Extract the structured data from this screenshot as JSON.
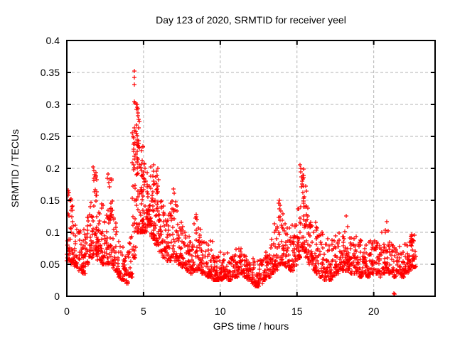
{
  "chart_data": {
    "type": "scatter",
    "title": "Day 123 of 2020, SRMTID for receiver yeel",
    "xlabel": "GPS time / hours",
    "ylabel": "SRMTID / TECUs",
    "xlim": [
      0,
      24
    ],
    "ylim": [
      0,
      0.4
    ],
    "xticks": [
      0,
      5,
      10,
      15,
      20
    ],
    "yticks": [
      0,
      0.05,
      0.1,
      0.15,
      0.2,
      0.25,
      0.3,
      0.35,
      0.4
    ],
    "grid": true,
    "legend": "none",
    "marker": "plus",
    "marker_color": "#ff0000",
    "grid_color": "#b3b3b3",
    "frame_color": "#000000",
    "background_color": "#ffffff",
    "seed": 123,
    "x_bin_width": 0.25,
    "envelope_bins_note": "each entry: [bin_start_hour, y_min, y_max, n_points] summarizing the dense scatter",
    "envelope_bins": [
      [
        0.0,
        0.055,
        0.165,
        26
      ],
      [
        0.25,
        0.05,
        0.145,
        26
      ],
      [
        0.5,
        0.045,
        0.12,
        24
      ],
      [
        0.75,
        0.04,
        0.105,
        22
      ],
      [
        1.0,
        0.035,
        0.11,
        24
      ],
      [
        1.25,
        0.05,
        0.135,
        24
      ],
      [
        1.5,
        0.06,
        0.175,
        26
      ],
      [
        1.75,
        0.065,
        0.195,
        26
      ],
      [
        2.0,
        0.055,
        0.155,
        26
      ],
      [
        2.25,
        0.05,
        0.145,
        26
      ],
      [
        2.5,
        0.05,
        0.165,
        24
      ],
      [
        2.75,
        0.05,
        0.185,
        24
      ],
      [
        3.0,
        0.04,
        0.125,
        24
      ],
      [
        3.25,
        0.03,
        0.1,
        22
      ],
      [
        3.5,
        0.025,
        0.085,
        22
      ],
      [
        3.75,
        0.02,
        0.08,
        22
      ],
      [
        4.0,
        0.03,
        0.1,
        24
      ],
      [
        4.25,
        0.06,
        0.265,
        28
      ],
      [
        4.5,
        0.1,
        0.295,
        30
      ],
      [
        4.75,
        0.1,
        0.235,
        30
      ],
      [
        5.0,
        0.1,
        0.22,
        30
      ],
      [
        5.25,
        0.11,
        0.21,
        28
      ],
      [
        5.5,
        0.09,
        0.215,
        28
      ],
      [
        5.75,
        0.08,
        0.2,
        28
      ],
      [
        6.0,
        0.07,
        0.16,
        26
      ],
      [
        6.25,
        0.06,
        0.145,
        24
      ],
      [
        6.5,
        0.055,
        0.13,
        24
      ],
      [
        6.75,
        0.06,
        0.165,
        24
      ],
      [
        7.0,
        0.055,
        0.15,
        24
      ],
      [
        7.25,
        0.05,
        0.12,
        24
      ],
      [
        7.5,
        0.045,
        0.11,
        24
      ],
      [
        7.75,
        0.04,
        0.1,
        24
      ],
      [
        8.0,
        0.035,
        0.1,
        24
      ],
      [
        8.25,
        0.04,
        0.125,
        24
      ],
      [
        8.5,
        0.04,
        0.11,
        24
      ],
      [
        8.75,
        0.035,
        0.09,
        22
      ],
      [
        9.0,
        0.03,
        0.085,
        22
      ],
      [
        9.25,
        0.03,
        0.09,
        22
      ],
      [
        9.5,
        0.025,
        0.07,
        22
      ],
      [
        9.75,
        0.025,
        0.065,
        22
      ],
      [
        10.0,
        0.025,
        0.07,
        22
      ],
      [
        10.25,
        0.03,
        0.075,
        22
      ],
      [
        10.5,
        0.025,
        0.065,
        22
      ],
      [
        10.75,
        0.03,
        0.07,
        22
      ],
      [
        11.0,
        0.03,
        0.08,
        22
      ],
      [
        11.25,
        0.035,
        0.08,
        22
      ],
      [
        11.5,
        0.03,
        0.07,
        22
      ],
      [
        11.75,
        0.025,
        0.065,
        22
      ],
      [
        12.0,
        0.02,
        0.06,
        22
      ],
      [
        12.25,
        0.015,
        0.055,
        22
      ],
      [
        12.5,
        0.02,
        0.06,
        22
      ],
      [
        12.75,
        0.025,
        0.07,
        22
      ],
      [
        13.0,
        0.03,
        0.08,
        22
      ],
      [
        13.25,
        0.035,
        0.1,
        24
      ],
      [
        13.5,
        0.04,
        0.12,
        24
      ],
      [
        13.75,
        0.05,
        0.148,
        24
      ],
      [
        14.0,
        0.05,
        0.13,
        24
      ],
      [
        14.25,
        0.045,
        0.12,
        24
      ],
      [
        14.5,
        0.04,
        0.115,
        24
      ],
      [
        14.75,
        0.045,
        0.12,
        24
      ],
      [
        15.0,
        0.06,
        0.15,
        26
      ],
      [
        15.25,
        0.07,
        0.2,
        26
      ],
      [
        15.5,
        0.06,
        0.17,
        26
      ],
      [
        15.75,
        0.05,
        0.145,
        24
      ],
      [
        16.0,
        0.04,
        0.12,
        24
      ],
      [
        16.25,
        0.035,
        0.11,
        24
      ],
      [
        16.5,
        0.03,
        0.1,
        22
      ],
      [
        16.75,
        0.025,
        0.09,
        22
      ],
      [
        17.0,
        0.025,
        0.085,
        22
      ],
      [
        17.25,
        0.03,
        0.09,
        22
      ],
      [
        17.5,
        0.035,
        0.095,
        22
      ],
      [
        17.75,
        0.04,
        0.1,
        22
      ],
      [
        18.0,
        0.04,
        0.115,
        24
      ],
      [
        18.25,
        0.04,
        0.11,
        24
      ],
      [
        18.5,
        0.035,
        0.1,
        22
      ],
      [
        18.75,
        0.035,
        0.095,
        22
      ],
      [
        19.0,
        0.03,
        0.09,
        22
      ],
      [
        19.25,
        0.035,
        0.09,
        22
      ],
      [
        19.5,
        0.03,
        0.085,
        22
      ],
      [
        19.75,
        0.035,
        0.09,
        22
      ],
      [
        20.0,
        0.035,
        0.09,
        22
      ],
      [
        20.25,
        0.03,
        0.085,
        22
      ],
      [
        20.5,
        0.035,
        0.1,
        22
      ],
      [
        20.75,
        0.04,
        0.11,
        22
      ],
      [
        21.0,
        0.035,
        0.085,
        22
      ],
      [
        21.25,
        0.03,
        0.08,
        22
      ],
      [
        21.5,
        0.035,
        0.08,
        22
      ],
      [
        21.75,
        0.03,
        0.085,
        22
      ],
      [
        22.0,
        0.035,
        0.09,
        24
      ],
      [
        22.25,
        0.04,
        0.098,
        26
      ],
      [
        22.5,
        0.045,
        0.1,
        24
      ]
    ],
    "peak_points_note": "individually visible extreme markers read off the plot [hour, TECUs]",
    "peak_points": [
      [
        4.4,
        0.352
      ],
      [
        4.42,
        0.342
      ],
      [
        4.41,
        0.331
      ],
      [
        4.38,
        0.305
      ],
      [
        4.43,
        0.302
      ],
      [
        4.55,
        0.3
      ],
      [
        4.57,
        0.296
      ],
      [
        4.52,
        0.292
      ],
      [
        4.6,
        0.3
      ],
      [
        4.62,
        0.287
      ],
      [
        4.66,
        0.277
      ],
      [
        4.56,
        0.268
      ],
      [
        4.5,
        0.258
      ],
      [
        4.36,
        0.248
      ],
      [
        4.34,
        0.238
      ],
      [
        4.7,
        0.243
      ],
      [
        4.72,
        0.232
      ],
      [
        1.7,
        0.202
      ],
      [
        1.76,
        0.197
      ],
      [
        1.8,
        0.19
      ],
      [
        1.74,
        0.185
      ],
      [
        2.7,
        0.191
      ],
      [
        2.66,
        0.184
      ],
      [
        2.74,
        0.178
      ],
      [
        15.2,
        0.206
      ],
      [
        15.23,
        0.2
      ],
      [
        15.26,
        0.194
      ],
      [
        15.29,
        0.187
      ],
      [
        15.33,
        0.18
      ],
      [
        15.55,
        0.172
      ],
      [
        15.6,
        0.165
      ],
      [
        6.95,
        0.168
      ],
      [
        7.0,
        0.161
      ],
      [
        0.07,
        0.166
      ],
      [
        0.1,
        0.158
      ],
      [
        0.28,
        0.152
      ],
      [
        8.45,
        0.128
      ],
      [
        8.48,
        0.12
      ],
      [
        13.85,
        0.15
      ],
      [
        13.9,
        0.142
      ],
      [
        18.2,
        0.126
      ],
      [
        20.85,
        0.117
      ],
      [
        21.3,
        0.004
      ],
      [
        21.37,
        0.003
      ]
    ]
  }
}
